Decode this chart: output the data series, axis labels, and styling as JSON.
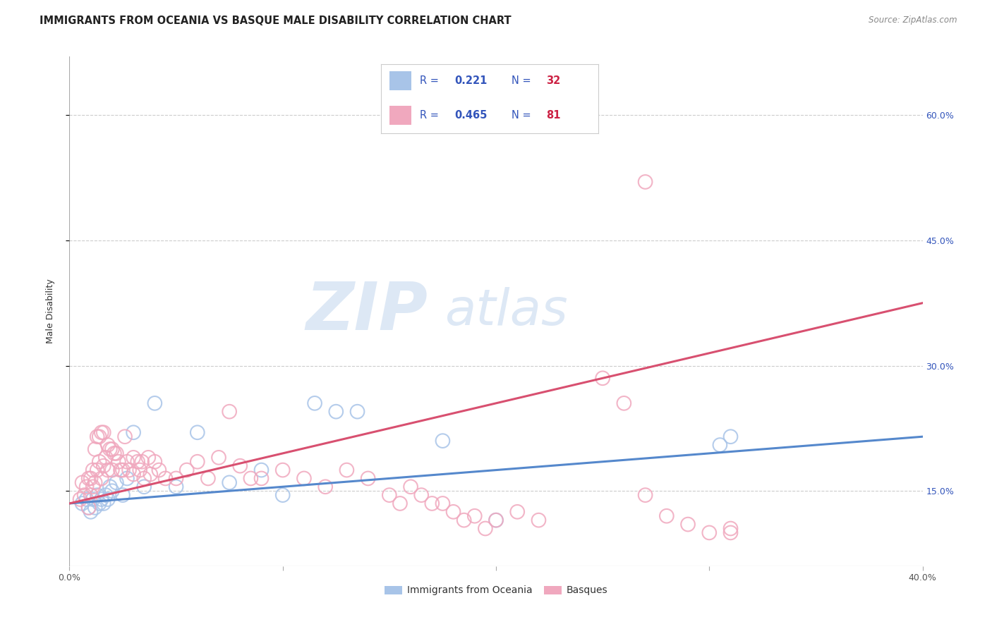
{
  "title": "IMMIGRANTS FROM OCEANIA VS BASQUE MALE DISABILITY CORRELATION CHART",
  "source": "Source: ZipAtlas.com",
  "ylabel": "Male Disability",
  "ytick_vals": [
    0.6,
    0.45,
    0.3,
    0.15
  ],
  "ytick_labels": [
    "60.0%",
    "45.0%",
    "30.0%",
    "15.0%"
  ],
  "xlim": [
    0.0,
    0.4
  ],
  "ylim": [
    0.06,
    0.67
  ],
  "legend_r_blue": "0.221",
  "legend_n_blue": "32",
  "legend_r_pink": "0.465",
  "legend_n_pink": "81",
  "color_blue": "#a8c4e8",
  "color_pink": "#f0a8be",
  "line_blue": "#5588cc",
  "line_pink": "#d85070",
  "blue_line_x": [
    0.0,
    0.4
  ],
  "blue_line_y": [
    0.135,
    0.215
  ],
  "pink_line_x": [
    0.0,
    0.4
  ],
  "pink_line_y": [
    0.135,
    0.375
  ],
  "background_color": "#ffffff",
  "grid_color": "#cccccc",
  "title_fontsize": 10.5,
  "label_fontsize": 9,
  "tick_fontsize": 9,
  "legend_text_color": "#3355bb",
  "watermark_color": "#dde8f5",
  "blue_x": [
    0.006,
    0.008,
    0.009,
    0.01,
    0.011,
    0.012,
    0.013,
    0.014,
    0.015,
    0.016,
    0.017,
    0.018,
    0.019,
    0.02,
    0.022,
    0.025,
    0.027,
    0.03,
    0.035,
    0.04,
    0.05,
    0.06,
    0.075,
    0.09,
    0.1,
    0.115,
    0.125,
    0.135,
    0.175,
    0.2,
    0.305,
    0.31
  ],
  "blue_y": [
    0.135,
    0.14,
    0.13,
    0.125,
    0.14,
    0.13,
    0.145,
    0.135,
    0.14,
    0.135,
    0.145,
    0.14,
    0.155,
    0.15,
    0.16,
    0.145,
    0.165,
    0.22,
    0.155,
    0.255,
    0.155,
    0.22,
    0.16,
    0.175,
    0.145,
    0.255,
    0.245,
    0.245,
    0.21,
    0.115,
    0.205,
    0.215
  ],
  "pink_x": [
    0.005,
    0.006,
    0.007,
    0.008,
    0.009,
    0.009,
    0.01,
    0.01,
    0.011,
    0.011,
    0.012,
    0.012,
    0.013,
    0.013,
    0.014,
    0.014,
    0.015,
    0.015,
    0.016,
    0.016,
    0.017,
    0.018,
    0.018,
    0.019,
    0.02,
    0.02,
    0.021,
    0.022,
    0.023,
    0.024,
    0.025,
    0.026,
    0.027,
    0.028,
    0.03,
    0.03,
    0.032,
    0.033,
    0.034,
    0.035,
    0.037,
    0.038,
    0.04,
    0.042,
    0.045,
    0.05,
    0.055,
    0.06,
    0.065,
    0.07,
    0.075,
    0.08,
    0.085,
    0.09,
    0.1,
    0.11,
    0.12,
    0.13,
    0.14,
    0.15,
    0.155,
    0.16,
    0.165,
    0.17,
    0.175,
    0.18,
    0.185,
    0.19,
    0.195,
    0.2,
    0.21,
    0.22,
    0.25,
    0.26,
    0.27,
    0.28,
    0.29,
    0.3,
    0.31,
    0.31,
    0.27
  ],
  "pink_y": [
    0.14,
    0.16,
    0.145,
    0.155,
    0.13,
    0.165,
    0.145,
    0.165,
    0.155,
    0.175,
    0.16,
    0.2,
    0.175,
    0.215,
    0.185,
    0.215,
    0.165,
    0.22,
    0.18,
    0.22,
    0.19,
    0.175,
    0.205,
    0.2,
    0.175,
    0.2,
    0.195,
    0.195,
    0.185,
    0.175,
    0.175,
    0.215,
    0.185,
    0.175,
    0.19,
    0.17,
    0.185,
    0.175,
    0.185,
    0.165,
    0.19,
    0.17,
    0.185,
    0.175,
    0.165,
    0.165,
    0.175,
    0.185,
    0.165,
    0.19,
    0.245,
    0.18,
    0.165,
    0.165,
    0.175,
    0.165,
    0.155,
    0.175,
    0.165,
    0.145,
    0.135,
    0.155,
    0.145,
    0.135,
    0.135,
    0.125,
    0.115,
    0.12,
    0.105,
    0.115,
    0.125,
    0.115,
    0.285,
    0.255,
    0.145,
    0.12,
    0.11,
    0.1,
    0.105,
    0.1,
    0.52
  ]
}
